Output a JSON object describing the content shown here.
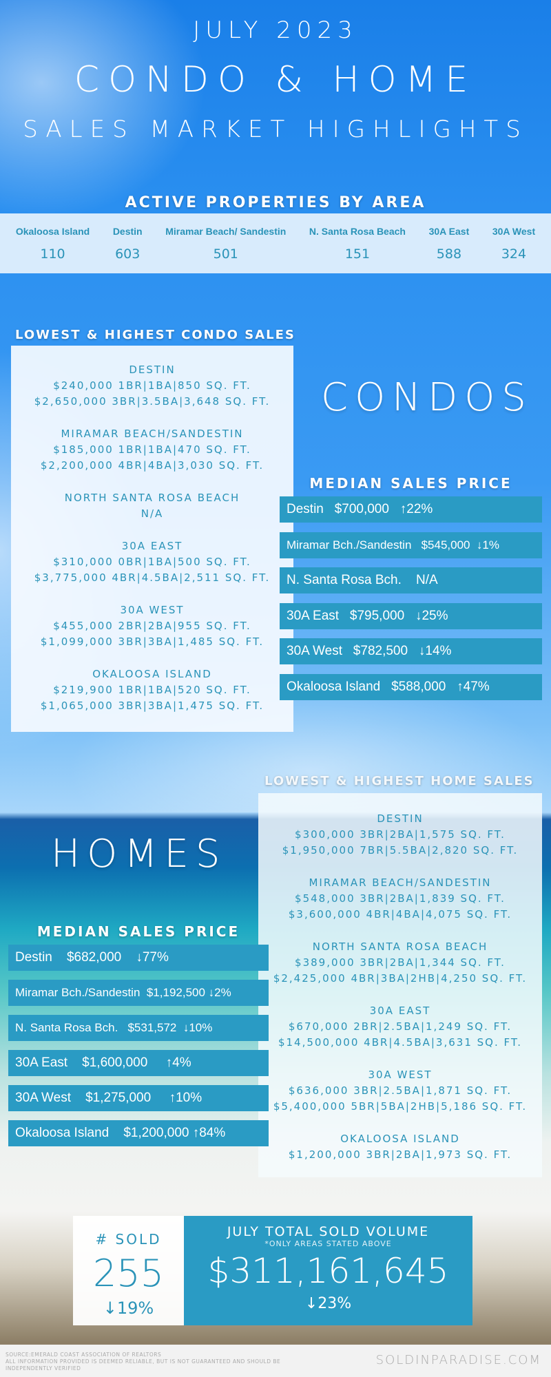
{
  "header": {
    "month": "JULY 2023",
    "title": "CONDO & HOME",
    "subtitle": "SALES MARKET HIGHLIGHTS"
  },
  "active": {
    "title": "ACTIVE PROPERTIES BY AREA",
    "areas": [
      {
        "name": "Okaloosa Island",
        "count": "110"
      },
      {
        "name": "Destin",
        "count": "603"
      },
      {
        "name": "Miramar Beach/ Sandestin",
        "count": "501"
      },
      {
        "name": "N. Santa Rosa Beach",
        "count": "151"
      },
      {
        "name": "30A East",
        "count": "588"
      },
      {
        "name": "30A West",
        "count": "324"
      }
    ]
  },
  "condos": {
    "label": "CONDOS",
    "sales_title": "LOWEST & HIGHEST CONDO SALES",
    "sales": [
      {
        "area": "DESTIN",
        "lines": [
          "$240,000  1BR|1BA|850 SQ. FT.",
          "$2,650,000  3BR|3.5BA|3,648 SQ. FT."
        ]
      },
      {
        "area": "MIRAMAR BEACH/SANDESTIN",
        "lines": [
          "$185,000  1BR|1BA|470 SQ. FT.",
          "$2,200,000  4BR|4BA|3,030 SQ. FT."
        ]
      },
      {
        "area": "NORTH SANTA ROSA BEACH",
        "lines": [
          "N/A"
        ]
      },
      {
        "area": "30A EAST",
        "lines": [
          "$310,000  0BR|1BA|500 SQ. FT.",
          "$3,775,000  4BR|4.5BA|2,511 SQ. FT."
        ]
      },
      {
        "area": "30A WEST",
        "lines": [
          "$455,000  2BR|2BA|955 SQ. FT.",
          "$1,099,000  3BR|3BA|1,485 SQ. FT."
        ]
      },
      {
        "area": "OKALOOSA ISLAND",
        "lines": [
          "$219,900 1BR|1BA|520 SQ. FT.",
          "$1,065,000 3BR|3BA|1,475 SQ. FT."
        ]
      }
    ],
    "median_title": "MEDIAN SALES PRICE",
    "median": [
      "Destin   $700,000   ↑22%",
      "Miramar Bch./Sandestin   $545,000  ↓1%",
      "N. Santa Rosa Bch.    N/A",
      "30A East   $795,000   ↓25%",
      "30A West   $782,500   ↓14%",
      "Okaloosa Island   $588,000   ↑47%"
    ]
  },
  "homes": {
    "label": "HOMES",
    "sales_title": "LOWEST & HIGHEST HOME SALES",
    "sales": [
      {
        "area": "DESTIN",
        "lines": [
          "$300,000  3BR|2BA|1,575 SQ. FT.",
          "$1,950,000  7BR|5.5BA|2,820 SQ. FT."
        ]
      },
      {
        "area": "MIRAMAR BEACH/SANDESTIN",
        "lines": [
          "$548,000  3BR|2BA|1,839 SQ. FT.",
          "$3,600,000  4BR|4BA|4,075 SQ. FT."
        ]
      },
      {
        "area": "NORTH SANTA ROSA BEACH",
        "lines": [
          "$389,000 3BR|2BA|1,344 SQ. FT.",
          "$2,425,000 4BR|3BA|2HB|4,250 SQ. FT."
        ]
      },
      {
        "area": "30A EAST",
        "lines": [
          "$670,000  2BR|2.5BA|1,249 SQ. FT.",
          "$14,500,000  4BR|4.5BA|3,631 SQ. FT."
        ]
      },
      {
        "area": "30A WEST",
        "lines": [
          "$636,000  3BR|2.5BA|1,871 SQ. FT.",
          "$5,400,000  5BR|5BA|2HB|5,186 SQ. FT."
        ]
      },
      {
        "area": "OKALOOSA ISLAND",
        "lines": [
          "$1,200,000 3BR|2BA|1,973 SQ. FT."
        ]
      }
    ],
    "median_title": "MEDIAN SALES PRICE",
    "median": [
      "Destin    $682,000    ↓77%",
      "Miramar Bch./Sandestin  $1,192,500 ↓2%",
      "N. Santa Rosa Bch.   $531,572  ↓10%",
      "30A East    $1,600,000     ↑4%",
      "30A West    $1,275,000     ↑10%",
      "Okaloosa Island    $1,200,000 ↑84%"
    ]
  },
  "totals": {
    "sold_label": "# SOLD",
    "sold": "255",
    "sold_change": "↓19%",
    "volume_label": "JULY TOTAL SOLD VOLUME",
    "volume_note": "*ONLY AREAS STATED ABOVE",
    "volume": "$311,161,645",
    "volume_change": "↓23%"
  },
  "footer": {
    "source": "SOURCE:EMERALD COAST ASSOCIATION OF REALTORS",
    "disclaimer": "ALL INFORMATION PROVIDED IS DEEMED RELIABLE, BUT IS NOT GUARANTEED AND SHOULD BE INDEPENDENTLY VERIFIED",
    "site": "SOLDINPARADISE.COM"
  },
  "colors": {
    "accent": "#2a9bc4",
    "text_teal": "#2a93b8"
  }
}
